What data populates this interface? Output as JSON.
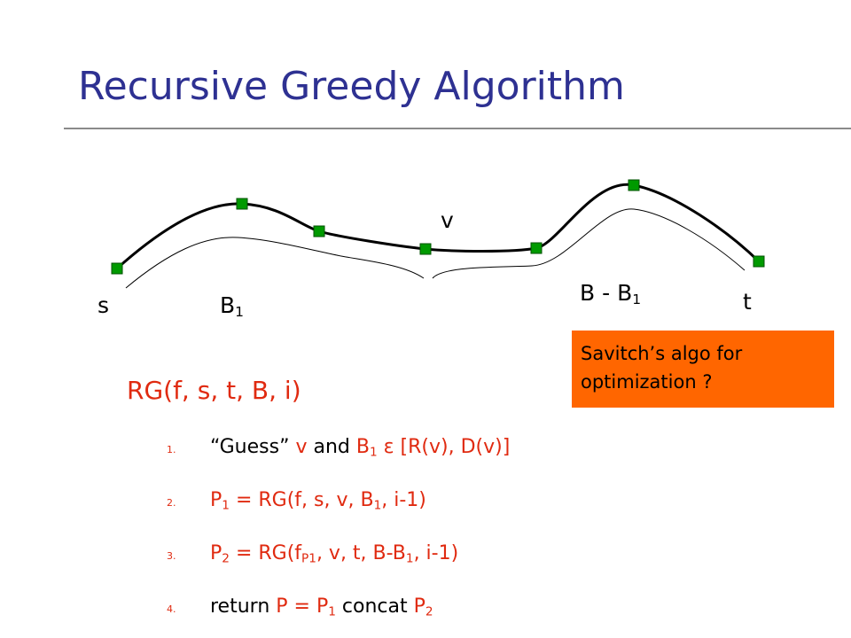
{
  "title": "Recursive Greedy Algorithm",
  "diagram": {
    "labels": [
      {
        "parts": [
          {
            "text": "s"
          }
        ]
      },
      {
        "parts": [
          {
            "text": "B"
          },
          {
            "text": "1",
            "sub": true
          }
        ]
      },
      {
        "parts": [
          {
            "text": "v"
          }
        ]
      },
      {
        "parts": [
          {
            "text": "B - B"
          },
          {
            "text": "1",
            "sub": true
          }
        ]
      },
      {
        "parts": [
          {
            "text": "t"
          }
        ]
      }
    ]
  },
  "note": {
    "lines": [
      "Savitch’s algo for",
      "optimization ?"
    ]
  },
  "heading": {
    "parts": [
      {
        "text": "RG(f, s, t, B, i)",
        "color": "#e02a10"
      }
    ]
  },
  "steps": [
    {
      "number": "1.",
      "parts": [
        {
          "text": "“Guess” "
        },
        {
          "text": "v",
          "color": "#e02a10"
        },
        {
          "text": " and "
        },
        {
          "text": "B",
          "color": "#e02a10"
        },
        {
          "text": "1",
          "sub": true,
          "color": "#e02a10"
        },
        {
          "text": " ε [R(v), D(v)]",
          "color": "#e02a10"
        }
      ]
    },
    {
      "number": "2.",
      "parts": [
        {
          "text": "P",
          "color": "#e02a10"
        },
        {
          "text": "1",
          "sub": true,
          "color": "#e02a10"
        },
        {
          "text": " = RG(f, s, v, B",
          "color": "#e02a10"
        },
        {
          "text": "1",
          "sub": true,
          "color": "#e02a10"
        },
        {
          "text": ", i-1)",
          "color": "#e02a10"
        }
      ]
    },
    {
      "number": "3.",
      "parts": [
        {
          "text": "P",
          "color": "#e02a10"
        },
        {
          "text": "2",
          "sub": true,
          "color": "#e02a10"
        },
        {
          "text": " = RG(f",
          "color": "#e02a10"
        },
        {
          "text": "P1",
          "sub": true,
          "color": "#e02a10"
        },
        {
          "text": ", v, t, B-B",
          "color": "#e02a10"
        },
        {
          "text": "1",
          "sub": true,
          "color": "#e02a10"
        },
        {
          "text": ", i-1)",
          "color": "#e02a10"
        }
      ]
    },
    {
      "number": "4.",
      "parts": [
        {
          "text": "return "
        },
        {
          "text": "P = P",
          "color": "#e02a10"
        },
        {
          "text": "1",
          "sub": true,
          "color": "#e02a10"
        },
        {
          "text": " concat "
        },
        {
          "text": "P",
          "color": "#e02a10"
        },
        {
          "text": "2",
          "sub": true,
          "color": "#e02a10"
        }
      ]
    }
  ]
}
